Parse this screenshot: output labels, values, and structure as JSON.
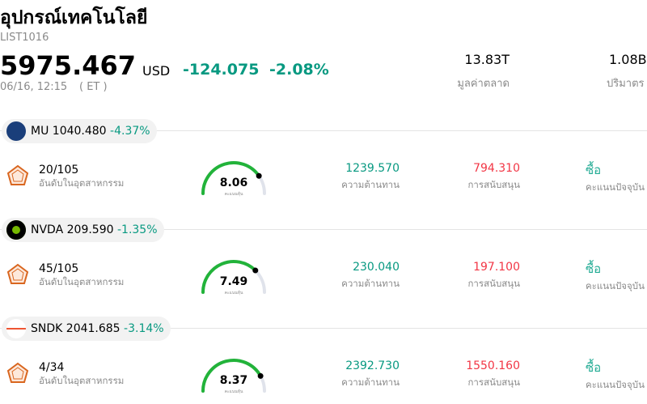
{
  "header": {
    "title": "อุปกรณ์เทคโนโลยี",
    "code": "LIST1016",
    "price": "5975.467",
    "currency": "USD",
    "change": "-124.075",
    "change_pct": "-2.08%",
    "time": "06/16, 12:15",
    "tz": "( ET )",
    "market_cap": "13.83T",
    "market_cap_label": "มูลค่าตลาด",
    "volume": "1.08B",
    "volume_label": "ปริมาตร"
  },
  "score_range": [
    0,
    10
  ],
  "stocks": [
    {
      "ticker": "MU",
      "price": "1040.480",
      "change_pct": "-4.37%",
      "rank": "20/105",
      "rank_label": "อันดับในอุตสาหกรรม",
      "score": 8.06,
      "score_label": "คะแนนหุ้น",
      "resistance": "1239.570",
      "resistance_label": "ความต้านทาน",
      "support": "794.310",
      "support_label": "การสนับสนุน",
      "rating": "ซื้อ",
      "rating_label": "คะแนนปัจจุบัน"
    },
    {
      "ticker": "NVDA",
      "price": "209.590",
      "change_pct": "-1.35%",
      "rank": "45/105",
      "rank_label": "อันดับในอุตสาหกรรม",
      "score": 7.49,
      "score_label": "คะแนนหุ้น",
      "resistance": "230.040",
      "resistance_label": "ความต้านทาน",
      "support": "197.100",
      "support_label": "การสนับสนุน",
      "rating": "ซื้อ",
      "rating_label": "คะแนนปัจจุบัน"
    },
    {
      "ticker": "SNDK",
      "price": "2041.685",
      "change_pct": "-3.14%",
      "rank": "4/34",
      "rank_label": "อันดับในอุตสาหกรรม",
      "score": 8.37,
      "score_label": "คะแนนหุ้น",
      "resistance": "2392.730",
      "resistance_label": "ความต้านทาน",
      "support": "1550.160",
      "support_label": "การสนับสนุน",
      "rating": "ซื้อ",
      "rating_label": "คะแนนปัจจุบัน"
    }
  ]
}
